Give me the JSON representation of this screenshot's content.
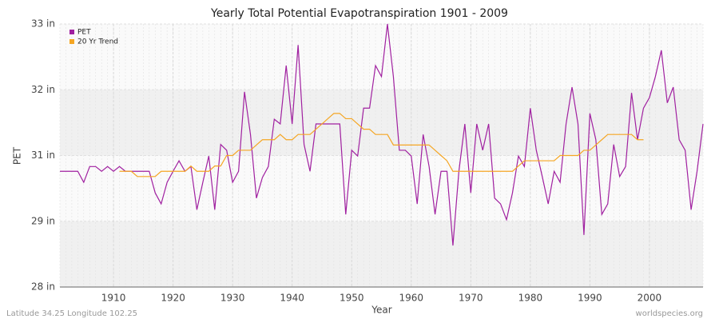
{
  "chart_data": {
    "type": "line",
    "title": "Yearly Total Potential Evapotranspiration 1901 - 2009",
    "x_label": "Year",
    "y_label": "PET",
    "footer_left": "Latitude 34.25 Longitude 102.25",
    "footer_right": "worldspecies.org",
    "x": [
      1901,
      1902,
      1903,
      1904,
      1905,
      1906,
      1907,
      1908,
      1909,
      1910,
      1911,
      1912,
      1913,
      1914,
      1915,
      1916,
      1917,
      1918,
      1919,
      1920,
      1921,
      1922,
      1923,
      1924,
      1925,
      1926,
      1927,
      1928,
      1929,
      1930,
      1931,
      1932,
      1933,
      1934,
      1935,
      1936,
      1937,
      1938,
      1939,
      1940,
      1941,
      1942,
      1943,
      1944,
      1945,
      1946,
      1947,
      1948,
      1949,
      1950,
      1951,
      1952,
      1953,
      1954,
      1955,
      1956,
      1957,
      1958,
      1959,
      1960,
      1961,
      1962,
      1963,
      1964,
      1965,
      1966,
      1967,
      1968,
      1969,
      1970,
      1971,
      1972,
      1973,
      1974,
      1975,
      1976,
      1977,
      1978,
      1979,
      1980,
      1981,
      1982,
      1983,
      1984,
      1985,
      1986,
      1987,
      1988,
      1989,
      1990,
      1991,
      1992,
      1993,
      1994,
      1995,
      1996,
      1997,
      1998,
      1999,
      2000,
      2001,
      2002,
      2003,
      2004,
      2005,
      2006,
      2007,
      2008,
      2009
    ],
    "series": [
      {
        "name": "PET",
        "color": "#a020a0",
        "values": [
          30.2,
          30.2,
          30.2,
          30.2,
          29.99,
          30.29,
          30.29,
          30.2,
          30.29,
          30.2,
          30.29,
          30.2,
          30.2,
          30.2,
          30.2,
          30.2,
          29.79,
          29.58,
          29.99,
          30.2,
          30.4,
          30.2,
          30.29,
          29.47,
          29.99,
          30.49,
          29.47,
          30.71,
          30.6,
          29.99,
          30.2,
          31.71,
          30.9,
          29.69,
          30.08,
          30.29,
          31.19,
          31.1,
          32.21,
          31.1,
          32.6,
          30.71,
          30.2,
          31.1,
          31.1,
          31.1,
          31.1,
          31.1,
          29.38,
          30.6,
          30.49,
          31.4,
          31.4,
          32.21,
          32.0,
          33.0,
          32.0,
          30.6,
          30.6,
          30.49,
          29.58,
          30.9,
          30.29,
          29.38,
          30.2,
          30.2,
          28.79,
          30.2,
          31.1,
          29.79,
          31.1,
          30.6,
          31.1,
          29.69,
          29.58,
          29.28,
          29.79,
          30.49,
          30.29,
          31.4,
          30.6,
          30.1,
          29.58,
          30.2,
          29.99,
          31.1,
          31.8,
          31.1,
          28.99,
          31.3,
          30.8,
          29.38,
          29.58,
          30.71,
          30.1,
          30.29,
          31.69,
          30.8,
          31.4,
          31.6,
          32.0,
          32.5,
          31.5,
          31.8,
          30.8,
          30.6,
          29.47,
          30.2,
          31.1
        ]
      },
      {
        "name": "20 Yr Trend",
        "color": "#f5a623",
        "values": [
          null,
          null,
          null,
          null,
          null,
          null,
          null,
          null,
          null,
          null,
          30.2,
          30.2,
          30.2,
          30.1,
          30.1,
          30.1,
          30.1,
          30.2,
          30.2,
          30.2,
          30.2,
          30.2,
          30.3,
          30.2,
          30.2,
          30.2,
          30.3,
          30.3,
          30.5,
          30.5,
          30.6,
          30.6,
          30.6,
          30.7,
          30.8,
          30.8,
          30.8,
          30.9,
          30.8,
          30.8,
          30.9,
          30.9,
          30.9,
          31.0,
          31.1,
          31.2,
          31.3,
          31.3,
          31.2,
          31.2,
          31.1,
          31.0,
          31.0,
          30.9,
          30.9,
          30.9,
          30.7,
          30.7,
          30.7,
          30.7,
          30.7,
          30.7,
          30.7,
          30.6,
          30.5,
          30.4,
          30.2,
          30.2,
          30.2,
          30.2,
          30.2,
          30.2,
          30.2,
          30.2,
          30.2,
          30.2,
          30.2,
          30.3,
          30.4,
          30.4,
          30.4,
          30.4,
          30.4,
          30.4,
          30.5,
          30.5,
          30.5,
          30.5,
          30.6,
          30.6,
          30.7,
          30.8,
          30.9,
          30.9,
          30.9,
          30.9,
          30.9,
          30.8,
          30.8,
          null,
          null,
          null,
          null,
          null,
          null,
          null,
          null,
          null,
          null
        ]
      }
    ],
    "xlim": [
      1901,
      2009
    ],
    "xticks": [
      1910,
      1920,
      1930,
      1940,
      1950,
      1960,
      1970,
      1980,
      1990,
      2000
    ],
    "ylim": [
      28,
      33
    ],
    "yticks": [
      {
        "value": 28,
        "label": "28 in"
      },
      {
        "value": 29.25,
        "label": "29 in"
      },
      {
        "value": 30.5,
        "label": "31 in"
      },
      {
        "value": 31.75,
        "label": "32 in"
      },
      {
        "value": 33,
        "label": "33 in"
      }
    ],
    "grid": true,
    "legend": "top-left"
  }
}
